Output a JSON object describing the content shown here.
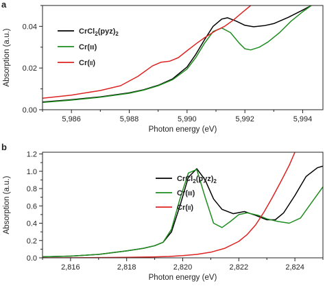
{
  "chart_data": [
    {
      "type": "line",
      "panel_label": "a",
      "xlabel": "Photon energy (eV)",
      "ylabel": "Absorption (a.u.)",
      "xlim": [
        5985,
        5994.7
      ],
      "ylim": [
        0,
        0.05
      ],
      "xticks": [
        5986,
        5988,
        5990,
        5992,
        5994
      ],
      "xtick_labels": [
        "5,986",
        "5,988",
        "5,990",
        "5,992",
        "5,994"
      ],
      "yticks": [
        0,
        0.02,
        0.04
      ],
      "ytick_labels": [
        "0.00",
        "0.02",
        "0.04"
      ],
      "grid": false,
      "legend_position": "left",
      "series": [
        {
          "name_main": "CrCl",
          "name_sub1": "2",
          "name_mid": "(pyz)",
          "name_sub2": "2",
          "color": "#000000",
          "x": [
            5985.0,
            5986.0,
            5987.0,
            5988.0,
            5988.5,
            5989.0,
            5989.5,
            5990.0,
            5990.3,
            5990.6,
            5990.9,
            5991.2,
            5991.4,
            5991.7,
            5992.0,
            5992.3,
            5992.7,
            5993.0,
            5993.5,
            5994.0,
            5994.3
          ],
          "y": [
            0.0037,
            0.0048,
            0.0062,
            0.0081,
            0.0096,
            0.0117,
            0.0148,
            0.0205,
            0.0265,
            0.0335,
            0.04,
            0.0435,
            0.0441,
            0.0425,
            0.0405,
            0.0398,
            0.0404,
            0.0413,
            0.0443,
            0.0478,
            0.05
          ]
        },
        {
          "name_main": "Cr(",
          "name_roman": "III",
          "name_end": ")",
          "color": "#1e8c1e",
          "x": [
            5985.0,
            5986.0,
            5987.0,
            5988.0,
            5988.5,
            5989.0,
            5989.5,
            5990.0,
            5990.3,
            5990.6,
            5990.9,
            5991.2,
            5991.5,
            5991.8,
            5992.0,
            5992.2,
            5992.5,
            5992.8,
            5993.2,
            5993.6,
            5994.0,
            5994.3
          ],
          "y": [
            0.0035,
            0.0046,
            0.006,
            0.0079,
            0.0094,
            0.0115,
            0.0144,
            0.0195,
            0.025,
            0.0318,
            0.0375,
            0.0392,
            0.037,
            0.032,
            0.0292,
            0.0287,
            0.03,
            0.0325,
            0.037,
            0.0425,
            0.047,
            0.05
          ]
        },
        {
          "name_main": "Cr(",
          "name_roman": "II",
          "name_end": ")",
          "color": "#dd2222",
          "x": [
            5985.0,
            5986.0,
            5987.0,
            5987.7,
            5988.3,
            5988.8,
            5989.1,
            5989.4,
            5989.7,
            5990.0,
            5990.3,
            5990.6,
            5991.0,
            5991.3,
            5991.6,
            5991.9,
            5992.2
          ],
          "y": [
            0.0055,
            0.007,
            0.0092,
            0.0115,
            0.016,
            0.021,
            0.0228,
            0.0233,
            0.025,
            0.0283,
            0.0315,
            0.0345,
            0.038,
            0.04,
            0.043,
            0.0465,
            0.05
          ]
        }
      ]
    },
    {
      "type": "line",
      "panel_label": "b",
      "xlabel": "Photon energy (eV)",
      "ylabel": "Absorption (a.u.)",
      "xlim": [
        2815,
        2825
      ],
      "ylim": [
        0,
        1.22
      ],
      "xticks": [
        2816,
        2818,
        2820,
        2822,
        2824
      ],
      "xtick_labels": [
        "2,816",
        "2,818",
        "2,820",
        "2,822",
        "2,824"
      ],
      "yticks": [
        0,
        0.2,
        0.4,
        0.6,
        0.8,
        1.0,
        1.2
      ],
      "ytick_labels": [
        "0.0",
        "0.2",
        "0.4",
        "0.6",
        "0.8",
        "1.0",
        "1.2"
      ],
      "grid": false,
      "legend_position": "right",
      "series": [
        {
          "name_main": "CrCl",
          "name_sub1": "2",
          "name_mid": "(pyz)",
          "name_sub2": "2",
          "color": "#000000",
          "x": [
            2815.0,
            2816.0,
            2817.0,
            2818.0,
            2818.6,
            2819.0,
            2819.3,
            2819.6,
            2819.9,
            2820.2,
            2820.5,
            2820.8,
            2821.1,
            2821.4,
            2821.8,
            2822.2,
            2822.6,
            2823.0,
            2823.3,
            2823.6,
            2824.0,
            2824.4,
            2824.8,
            2825.0
          ],
          "y": [
            0.012,
            0.02,
            0.04,
            0.08,
            0.11,
            0.14,
            0.18,
            0.3,
            0.6,
            0.93,
            1.03,
            0.9,
            0.68,
            0.56,
            0.51,
            0.535,
            0.49,
            0.44,
            0.44,
            0.52,
            0.72,
            0.94,
            1.04,
            1.06
          ]
        },
        {
          "name_main": "Cr(",
          "name_roman": "III",
          "name_end": ")",
          "color": "#1e8c1e",
          "x": [
            2815.0,
            2816.0,
            2817.0,
            2818.0,
            2818.6,
            2819.0,
            2819.3,
            2819.6,
            2819.9,
            2820.2,
            2820.5,
            2820.8,
            2821.1,
            2821.4,
            2821.7,
            2822.0,
            2822.3,
            2822.7,
            2823.0,
            2823.4,
            2823.8,
            2824.2,
            2824.6,
            2825.0
          ],
          "y": [
            0.012,
            0.02,
            0.04,
            0.08,
            0.11,
            0.14,
            0.18,
            0.33,
            0.68,
            0.98,
            1.02,
            0.7,
            0.4,
            0.35,
            0.42,
            0.5,
            0.52,
            0.49,
            0.45,
            0.42,
            0.4,
            0.46,
            0.64,
            0.82
          ]
        },
        {
          "name_main": "Cr(",
          "name_roman": "II",
          "name_end": ")",
          "color": "#dd2222",
          "x": [
            2815.0,
            2816.0,
            2817.0,
            2818.0,
            2819.0,
            2819.5,
            2820.0,
            2820.5,
            2821.0,
            2821.5,
            2822.0,
            2822.3,
            2822.6,
            2822.9,
            2823.2,
            2823.5,
            2823.8,
            2824.0
          ],
          "y": [
            0.0,
            0.001,
            0.003,
            0.006,
            0.011,
            0.016,
            0.025,
            0.04,
            0.065,
            0.11,
            0.19,
            0.27,
            0.38,
            0.53,
            0.7,
            0.88,
            1.07,
            1.22
          ]
        }
      ]
    }
  ]
}
